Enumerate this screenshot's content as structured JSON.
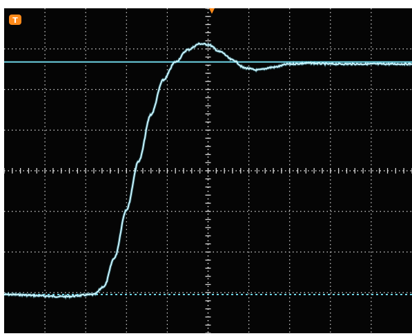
{
  "screen": {
    "background_color": "#050505",
    "border_color": "#111111",
    "grid_color": "#d8d8d8",
    "trace_color": "#c8f4ff",
    "reference_line_color": "#6fd4e6",
    "marker_fill": "#ff8a1a"
  },
  "trigger_marker": {
    "icon": "trigger-icon",
    "label": "T"
  },
  "top_marker": {
    "icon": "trigger-position-arrow-icon"
  },
  "grid": {
    "horizontal_divisions": 10,
    "vertical_divisions": 8,
    "minor_ticks_per_division": 5
  },
  "reference_levels": {
    "upper_level_div": 5.75,
    "lower_level_div": 0.0
  },
  "waveform": {
    "type": "step_response",
    "x_div": [
      0,
      1.5,
      2.2,
      2.45,
      2.7,
      3.0,
      3.3,
      3.6,
      3.9,
      4.2,
      4.5,
      4.8,
      5.0,
      5.3,
      5.6,
      5.9,
      6.2,
      6.6,
      7.0,
      7.5,
      8.0,
      9.0,
      10.0
    ],
    "y_div": [
      0.0,
      -0.05,
      0.0,
      0.2,
      0.9,
      2.1,
      3.3,
      4.45,
      5.3,
      5.75,
      6.05,
      6.2,
      6.18,
      6.0,
      5.8,
      5.6,
      5.55,
      5.62,
      5.7,
      5.72,
      5.7,
      5.7,
      5.7
    ]
  }
}
